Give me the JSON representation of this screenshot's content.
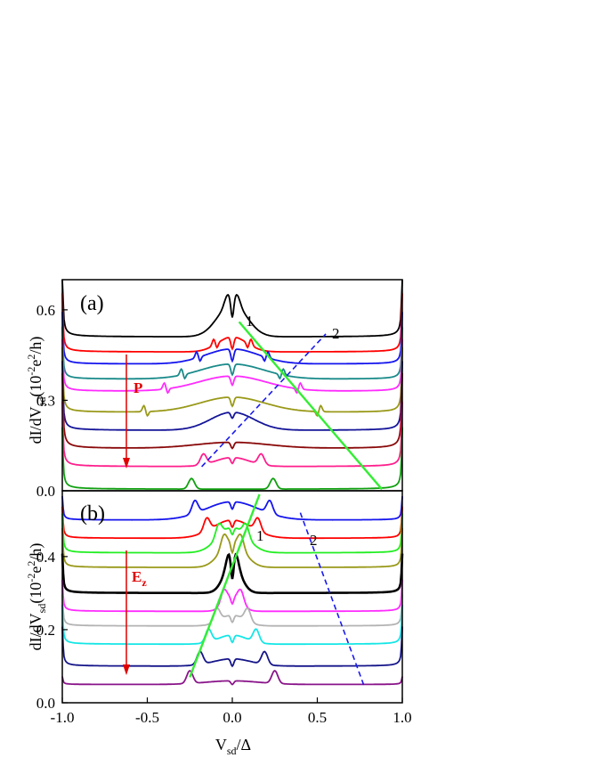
{
  "chart_data": [
    {
      "panel": "(a)",
      "type": "line",
      "xlim": [
        -1.0,
        1.0
      ],
      "ylim": [
        0.0,
        0.7
      ],
      "yticks": [
        "0.0",
        "0.3",
        "0.6"
      ],
      "ytick_values": [
        0.0,
        0.3,
        0.6
      ],
      "ylabel": "dI/dV_sd(10^-2 e^2/h)",
      "arrow_label": "P",
      "line_labels": [
        "1",
        "2"
      ],
      "series": [
        {
          "color": "#000000",
          "width": 1.8,
          "edge": 0.62,
          "base": 0.51,
          "dip": 0.028,
          "hump_a": 0.11,
          "hump_w": 0.12,
          "peak_x": 0.028,
          "spike_x": null
        },
        {
          "color": "#ff0000",
          "width": 1.8,
          "edge": 0.55,
          "base": 0.46,
          "dip": 0.02,
          "hump_a": 0.05,
          "hump_w": 0.12,
          "peak_x": 0.0,
          "spike_x": 0.11
        },
        {
          "color": "#1515ee",
          "width": 1.8,
          "edge": 0.5,
          "base": 0.42,
          "dip": 0.02,
          "hump_a": 0.05,
          "hump_w": 0.22,
          "peak_x": 0.0,
          "spike_x": 0.21
        },
        {
          "color": "#1a8a8a",
          "width": 1.8,
          "edge": 0.45,
          "base": 0.37,
          "dip": 0.018,
          "hump_a": 0.05,
          "hump_w": 0.26,
          "peak_x": 0.0,
          "spike_x": 0.3
        },
        {
          "color": "#ff2bff",
          "width": 1.8,
          "edge": 0.41,
          "base": 0.33,
          "dip": 0.015,
          "hump_a": 0.05,
          "hump_w": 0.28,
          "peak_x": 0.0,
          "spike_x": 0.4
        },
        {
          "color": "#99991a",
          "width": 1.8,
          "edge": 0.36,
          "base": 0.26,
          "dip": 0.015,
          "hump_a": 0.05,
          "hump_w": 0.27,
          "peak_x": 0.0,
          "spike_x": 0.52
        },
        {
          "color": "#151599",
          "width": 1.8,
          "edge": 0.31,
          "base": 0.2,
          "dip": 0.01,
          "hump_a": 0.06,
          "hump_w": 0.18,
          "peak_x": 0.0,
          "spike_x": null
        },
        {
          "color": "#8a0a0a",
          "width": 1.8,
          "edge": 0.27,
          "base": 0.14,
          "dip": 0.01,
          "hump_a": 0.02,
          "hump_w": 0.3,
          "peak_x": 0.0,
          "spike_x": null
        },
        {
          "color": "#ff1e8c",
          "width": 1.8,
          "edge": 0.18,
          "base": 0.08,
          "dip": 0.01,
          "hump_a": 0.03,
          "hump_w": 0.14,
          "peak_x": 0.17,
          "spike_x": null
        },
        {
          "color": "#10a010",
          "width": 1.8,
          "edge": 0.1,
          "base": 0.005,
          "dip": 0.0,
          "hump_a": 0.0,
          "hump_w": 0.1,
          "peak_x": 0.24,
          "spike_x": null
        }
      ],
      "guide_lines": [
        {
          "color": "#33ee33",
          "dash": false,
          "x": [
            0.04,
            0.88
          ],
          "y": [
            0.56,
            0.005
          ]
        },
        {
          "color": "#1a1aee",
          "dash": true,
          "x": [
            -0.18,
            0.55
          ],
          "y": [
            0.08,
            0.52
          ]
        }
      ]
    },
    {
      "panel": "(b)",
      "type": "line",
      "xlim": [
        -1.0,
        1.0
      ],
      "ylim": [
        0.0,
        0.58
      ],
      "yticks": [
        "0.0",
        "0.2",
        "0.4"
      ],
      "ytick_values": [
        0.0,
        0.2,
        0.4
      ],
      "xticks": [
        "-1.0",
        "-0.5",
        "0.0",
        "0.5",
        "1.0"
      ],
      "xtick_values": [
        -1.0,
        -0.5,
        0.0,
        0.5,
        1.0
      ],
      "xlabel": "V_sd/Δ",
      "ylabel": "dI/dV_sd(10^-2 e^2/h)",
      "arrow_label": "E_z",
      "line_labels": [
        "1",
        "2"
      ],
      "series": [
        {
          "color": "#1515ee",
          "width": 1.8,
          "edge": 0.53,
          "base": 0.5,
          "dip": 0.01,
          "hump_a": 0.05,
          "hump_w": 0.22,
          "peak_x": 0.22,
          "spike_x": null
        },
        {
          "color": "#ff0000",
          "width": 1.8,
          "edge": 0.49,
          "base": 0.45,
          "dip": 0.01,
          "hump_a": 0.05,
          "hump_w": 0.16,
          "peak_x": 0.15,
          "spike_x": null
        },
        {
          "color": "#22ee22",
          "width": 1.8,
          "edge": 0.46,
          "base": 0.41,
          "dip": 0.01,
          "hump_a": 0.07,
          "hump_w": 0.12,
          "peak_x": 0.08,
          "spike_x": null
        },
        {
          "color": "#99991a",
          "width": 1.8,
          "edge": 0.42,
          "base": 0.37,
          "dip": 0.015,
          "hump_a": 0.07,
          "hump_w": 0.1,
          "peak_x": 0.05,
          "spike_x": null
        },
        {
          "color": "#000000",
          "width": 2.6,
          "edge": 0.35,
          "base": 0.3,
          "dip": 0.03,
          "hump_a": 0.08,
          "hump_w": 0.07,
          "peak_x": 0.02,
          "spike_x": null
        },
        {
          "color": "#ff2bff",
          "width": 1.8,
          "edge": 0.29,
          "base": 0.25,
          "dip": 0.01,
          "hump_a": 0.04,
          "hump_w": 0.07,
          "peak_x": 0.05,
          "spike_x": null
        },
        {
          "color": "#b3b3b3",
          "width": 1.8,
          "edge": 0.25,
          "base": 0.21,
          "dip": 0.01,
          "hump_a": 0.03,
          "hump_w": 0.1,
          "peak_x": 0.09,
          "spike_x": null
        },
        {
          "color": "#15e6e6",
          "width": 1.8,
          "edge": 0.21,
          "base": 0.16,
          "dip": 0.01,
          "hump_a": 0.025,
          "hump_w": 0.12,
          "peak_x": 0.14,
          "spike_x": null
        },
        {
          "color": "#15158a",
          "width": 1.8,
          "edge": 0.15,
          "base": 0.1,
          "dip": 0.01,
          "hump_a": 0.02,
          "hump_w": 0.16,
          "peak_x": 0.19,
          "spike_x": null
        },
        {
          "color": "#8a158a",
          "width": 1.8,
          "edge": 0.06,
          "base": 0.05,
          "dip": 0.005,
          "hump_a": 0.01,
          "hump_w": 0.22,
          "peak_x": 0.25,
          "spike_x": null
        }
      ],
      "guide_lines": [
        {
          "color": "#33ee33",
          "dash": false,
          "x": [
            -0.25,
            0.16
          ],
          "y": [
            0.07,
            0.57
          ]
        },
        {
          "color": "#1a1aee",
          "dash": true,
          "x": [
            0.4,
            0.78
          ],
          "y": [
            0.52,
            0.04
          ]
        }
      ]
    }
  ]
}
